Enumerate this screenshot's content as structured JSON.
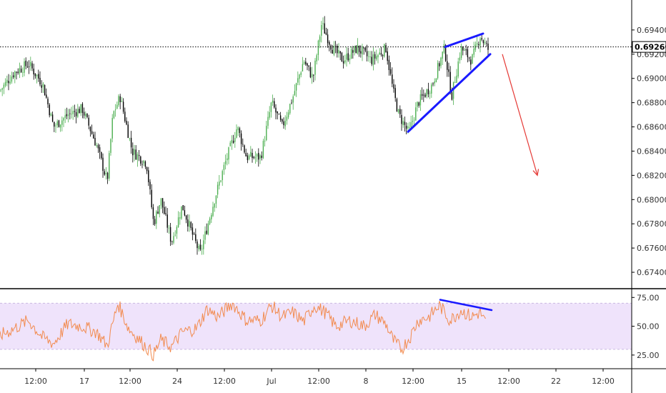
{
  "chart_data": [
    {
      "type": "candlestick",
      "panel": "price",
      "ylim": [
        0.673,
        0.696
      ],
      "y_ticks": [
        "0.69400",
        "0.69200",
        "0.69000",
        "0.68800",
        "0.68600",
        "0.68400",
        "0.68200",
        "0.68000",
        "0.67800",
        "0.67600",
        "0.67400"
      ],
      "current_price_label": "0.69260",
      "current_price": 0.6926,
      "path_keypoints": [
        [
          0,
          0.689
        ],
        [
          20,
          0.6905
        ],
        [
          40,
          0.6912
        ],
        [
          60,
          0.6895
        ],
        [
          75,
          0.686
        ],
        [
          95,
          0.687
        ],
        [
          115,
          0.6875
        ],
        [
          135,
          0.6845
        ],
        [
          150,
          0.6815
        ],
        [
          158,
          0.687
        ],
        [
          168,
          0.6885
        ],
        [
          185,
          0.684
        ],
        [
          205,
          0.683
        ],
        [
          215,
          0.678
        ],
        [
          225,
          0.68
        ],
        [
          240,
          0.6765
        ],
        [
          255,
          0.6795
        ],
        [
          270,
          0.677
        ],
        [
          280,
          0.6755
        ],
        [
          300,
          0.68
        ],
        [
          315,
          0.683
        ],
        [
          332,
          0.686
        ],
        [
          345,
          0.6835
        ],
        [
          365,
          0.6835
        ],
        [
          380,
          0.688
        ],
        [
          395,
          0.686
        ],
        [
          410,
          0.6885
        ],
        [
          425,
          0.6915
        ],
        [
          438,
          0.69
        ],
        [
          450,
          0.6945
        ],
        [
          465,
          0.6925
        ],
        [
          480,
          0.6915
        ],
        [
          500,
          0.6925
        ],
        [
          520,
          0.6915
        ],
        [
          540,
          0.6925
        ],
        [
          550,
          0.689
        ],
        [
          558,
          0.687
        ],
        [
          572,
          0.6855
        ],
        [
          585,
          0.688
        ],
        [
          605,
          0.6895
        ],
        [
          622,
          0.6925
        ],
        [
          632,
          0.6885
        ],
        [
          645,
          0.6925
        ],
        [
          660,
          0.6915
        ],
        [
          672,
          0.6935
        ],
        [
          684,
          0.6923
        ]
      ],
      "rising_wedge": {
        "upper": [
          [
            623,
            0.6926
          ],
          [
            676,
            0.6937
          ]
        ],
        "lower": [
          [
            571,
            0.6856
          ],
          [
            686,
            0.692
          ]
        ]
      },
      "projection_arrow": {
        "from": [
          703,
          0.692
        ],
        "to": [
          752,
          0.682
        ]
      }
    },
    {
      "type": "line",
      "panel": "rsi",
      "ylim": [
        15,
        82
      ],
      "y_ticks": [
        "75.00",
        "50.00",
        "25.00"
      ],
      "band": [
        30,
        70
      ],
      "path_keypoints": [
        [
          0,
          42
        ],
        [
          20,
          48
        ],
        [
          40,
          55
        ],
        [
          60,
          40
        ],
        [
          75,
          35
        ],
        [
          95,
          52
        ],
        [
          115,
          50
        ],
        [
          135,
          45
        ],
        [
          150,
          33
        ],
        [
          165,
          70
        ],
        [
          180,
          48
        ],
        [
          200,
          35
        ],
        [
          215,
          25
        ],
        [
          225,
          38
        ],
        [
          240,
          32
        ],
        [
          255,
          45
        ],
        [
          275,
          48
        ],
        [
          290,
          65
        ],
        [
          305,
          58
        ],
        [
          325,
          70
        ],
        [
          345,
          55
        ],
        [
          365,
          55
        ],
        [
          380,
          68
        ],
        [
          395,
          58
        ],
        [
          410,
          62
        ],
        [
          425,
          54
        ],
        [
          440,
          68
        ],
        [
          455,
          62
        ],
        [
          470,
          50
        ],
        [
          490,
          55
        ],
        [
          510,
          50
        ],
        [
          525,
          60
        ],
        [
          540,
          52
        ],
        [
          550,
          38
        ],
        [
          562,
          30
        ],
        [
          575,
          42
        ],
        [
          585,
          55
        ],
        [
          600,
          58
        ],
        [
          615,
          68
        ],
        [
          630,
          55
        ],
        [
          645,
          64
        ],
        [
          660,
          58
        ],
        [
          672,
          62
        ],
        [
          680,
          52
        ]
      ],
      "divergence_line": {
        "from": [
          616,
          73
        ],
        "to": [
          688,
          64
        ]
      }
    }
  ],
  "x_ticks": [
    {
      "label": "12:00",
      "x": 50
    },
    {
      "label": "17",
      "x": 118
    },
    {
      "label": "12:00",
      "x": 182
    },
    {
      "label": "24",
      "x": 248
    },
    {
      "label": "12:00",
      "x": 314
    },
    {
      "label": "Jul",
      "x": 380
    },
    {
      "label": "12:00",
      "x": 446
    },
    {
      "label": "8",
      "x": 512
    },
    {
      "label": "12:00",
      "x": 578
    },
    {
      "label": "15",
      "x": 646
    },
    {
      "label": "12:00",
      "x": 712
    },
    {
      "label": "22",
      "x": 778
    },
    {
      "label": "12:00",
      "x": 844
    }
  ],
  "colors": {
    "up": "#26a69a",
    "up_body": "#4caf50",
    "down": "#000000",
    "wedge": "#1a1aff",
    "arrow": "#e53935",
    "rsi": "#f28b4f",
    "rsi_band": "#efe3fb",
    "axis": "#000000"
  }
}
